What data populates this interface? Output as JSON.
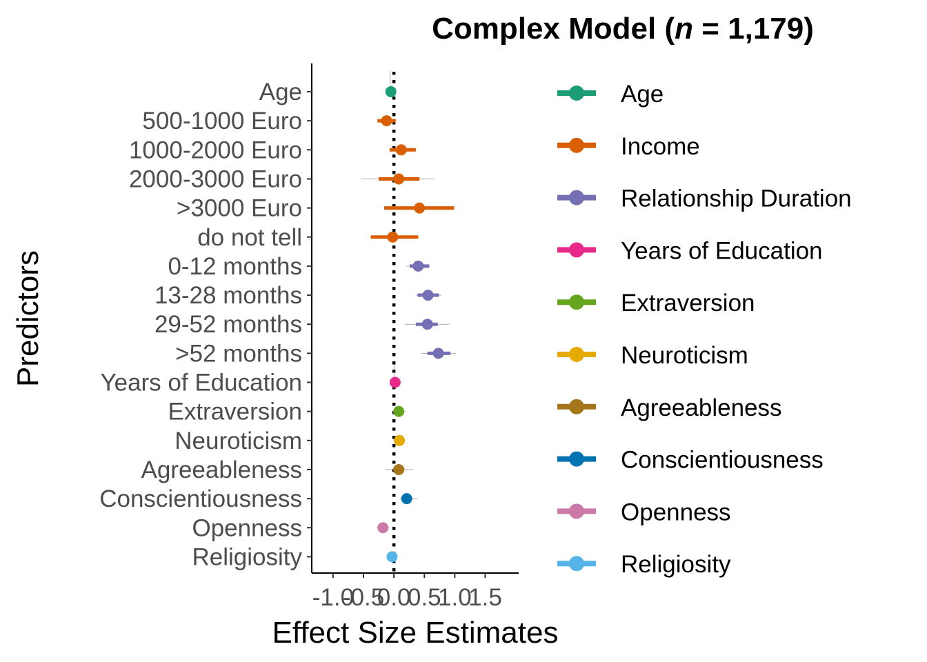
{
  "chart_data": {
    "type": "forest",
    "title_prefix": "Complex Model (",
    "title_n": "n",
    "title_suffix": " = 1,179)",
    "xlabel": "Effect Size Estimates",
    "ylabel": "Predictors",
    "xlim": [
      -1.35,
      2.05
    ],
    "x_ticks": [
      -1.0,
      -0.5,
      0.0,
      0.5,
      1.0,
      1.5
    ],
    "x_tick_labels": [
      "-1.0",
      "-0.5",
      "0.0",
      "0.5",
      "1.0",
      "1.5"
    ],
    "reference_line": 0,
    "grid": false,
    "legend_position": "right",
    "groups": [
      {
        "name": "Age",
        "color": "#1B9E77"
      },
      {
        "name": "Income",
        "color": "#D95F02"
      },
      {
        "name": "Relationship Duration",
        "color": "#7570B3"
      },
      {
        "name": "Years of Education",
        "color": "#E7298A"
      },
      {
        "name": "Extraversion",
        "color": "#66A61E"
      },
      {
        "name": "Neuroticism",
        "color": "#E6AB02"
      },
      {
        "name": "Agreeableness",
        "color": "#A6761D"
      },
      {
        "name": "Conscientiousness",
        "color": "#0072B2"
      },
      {
        "name": "Openness",
        "color": "#CC79A7"
      },
      {
        "name": "Religiosity",
        "color": "#56B4E9"
      }
    ],
    "predictors": [
      {
        "label": "Age",
        "group": 0,
        "estimate": -0.05,
        "ci50": [
          -0.07,
          -0.03
        ],
        "ci95": [
          -0.06,
          -0.04
        ],
        "top": 1.8
      },
      {
        "label": "500-1000 Euro",
        "group": 1,
        "estimate": -0.12,
        "ci50": [
          -0.27,
          0.03
        ],
        "ci95": [
          -0.27,
          0.03
        ]
      },
      {
        "label": "1000-2000 Euro",
        "group": 1,
        "estimate": 0.12,
        "ci50": [
          -0.07,
          0.36
        ],
        "ci95": [
          -0.07,
          0.36
        ]
      },
      {
        "label": "2000-3000 Euro",
        "group": 1,
        "estimate": 0.08,
        "ci50": [
          -0.25,
          0.42
        ],
        "ci95": [
          -0.54,
          0.66
        ]
      },
      {
        "label": ">3000 Euro",
        "group": 1,
        "estimate": 0.42,
        "ci50": [
          -0.16,
          0.99
        ],
        "ci95": [
          -0.16,
          0.99
        ]
      },
      {
        "label": "do not tell",
        "group": 1,
        "estimate": -0.02,
        "ci50": [
          -0.38,
          0.4
        ],
        "ci95": [
          -0.38,
          0.4
        ]
      },
      {
        "label": "0-12 months",
        "group": 2,
        "estimate": 0.4,
        "ci50": [
          0.26,
          0.58
        ],
        "ci95": [
          0.2,
          0.6
        ]
      },
      {
        "label": "13-28 months",
        "group": 2,
        "estimate": 0.56,
        "ci50": [
          0.39,
          0.74
        ],
        "ci95": [
          0.36,
          0.78
        ]
      },
      {
        "label": "29-52 months",
        "group": 2,
        "estimate": 0.55,
        "ci50": [
          0.36,
          0.72
        ],
        "ci95": [
          0.18,
          0.92
        ]
      },
      {
        "label": ">52 months",
        "group": 2,
        "estimate": 0.73,
        "ci50": [
          0.55,
          0.93
        ],
        "ci95": [
          0.45,
          1.02
        ]
      },
      {
        "label": "Years of Education",
        "group": 3,
        "estimate": 0.02,
        "ci50": [
          0.0,
          0.03
        ],
        "ci95": [
          0.0,
          0.04
        ],
        "top": 10.7
      },
      {
        "label": "Extraversion",
        "group": 4,
        "estimate": 0.08,
        "ci50": [
          0.02,
          0.14
        ],
        "ci95": [
          0.0,
          0.19
        ]
      },
      {
        "label": "Neuroticism",
        "group": 5,
        "estimate": 0.09,
        "ci50": [
          0.03,
          0.15
        ],
        "ci95": [
          0.01,
          0.18
        ]
      },
      {
        "label": "Agreeableness",
        "group": 6,
        "estimate": 0.08,
        "ci50": [
          0.0,
          0.17
        ],
        "ci95": [
          -0.14,
          0.32
        ]
      },
      {
        "label": "Conscientiousness",
        "group": 7,
        "estimate": 0.21,
        "ci50": [
          0.14,
          0.28
        ],
        "ci95": [
          0.1,
          0.39
        ]
      },
      {
        "label": "Openness",
        "group": 8,
        "estimate": -0.18,
        "ci50": [
          -0.25,
          -0.11
        ],
        "ci95": [
          -0.28,
          -0.08
        ]
      },
      {
        "label": "Religiosity",
        "group": 9,
        "estimate": -0.03,
        "ci50": [
          -0.08,
          0.02
        ],
        "ci95": [
          -0.1,
          0.04
        ]
      }
    ]
  }
}
